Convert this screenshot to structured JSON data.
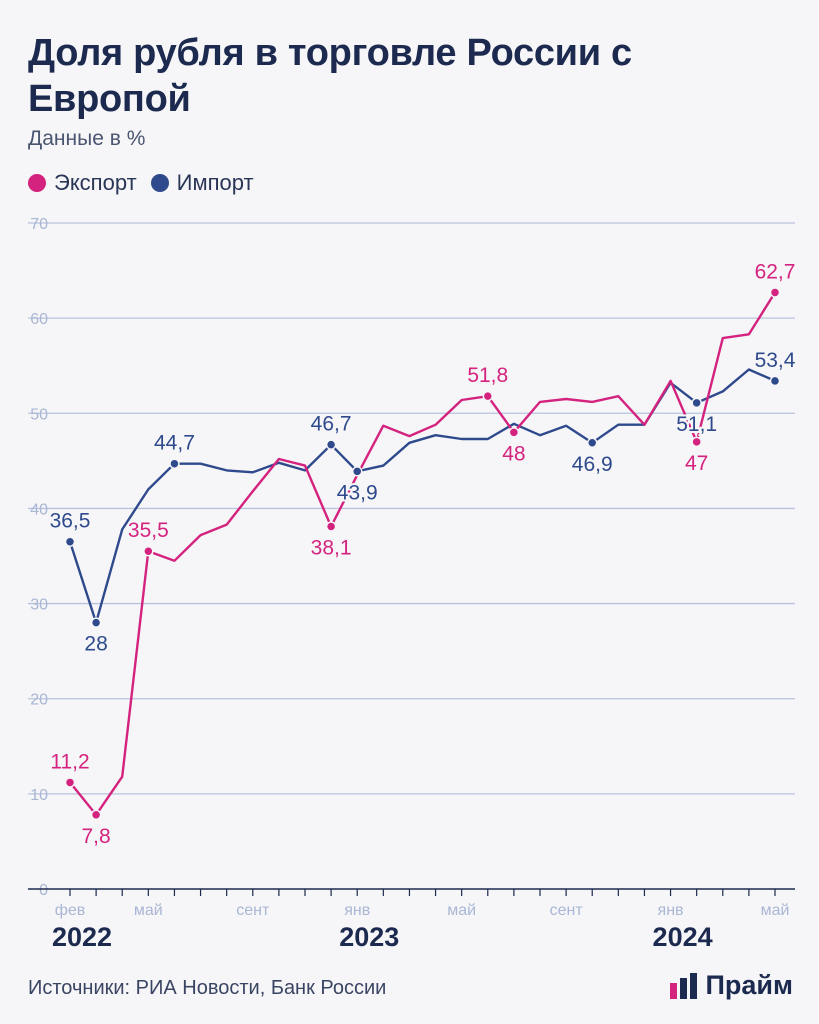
{
  "title": "Доля рубля в торговле России с Европой",
  "subtitle": "Данные в %",
  "legend": {
    "export_label": "Экспорт",
    "import_label": "Импорт"
  },
  "colors": {
    "export": "#d4237f",
    "import": "#2e4a8c",
    "grid": "#b9c3dd",
    "axis": "#1d2a4f",
    "tick": "#a9b6d4"
  },
  "source": "Источники: РИА Новости, Банк России",
  "brand": {
    "name": "Прайм"
  },
  "chart_data": {
    "type": "line",
    "title": "Доля рубля в торговле России с Европой",
    "ylabel": "Данные в %",
    "ylim": [
      0,
      70
    ],
    "yticks": [
      0,
      10,
      20,
      30,
      40,
      50,
      60,
      70
    ],
    "x": [
      "фев 2022",
      "мар 2022",
      "апр 2022",
      "май 2022",
      "июн 2022",
      "июл 2022",
      "авг 2022",
      "сен 2022",
      "окт 2022",
      "ноя 2022",
      "дек 2022",
      "янв 2023",
      "фев 2023",
      "мар 2023",
      "апр 2023",
      "май 2023",
      "июн 2023",
      "июл 2023",
      "авг 2023",
      "сен 2023",
      "окт 2023",
      "ноя 2023",
      "дек 2023",
      "янв 2024",
      "фев 2024",
      "мар 2024",
      "апр 2024",
      "май 2024"
    ],
    "xtick_labels": [
      {
        "index": 0,
        "label": "фев"
      },
      {
        "index": 3,
        "label": "май"
      },
      {
        "index": 7,
        "label": "сент"
      },
      {
        "index": 11,
        "label": "янв"
      },
      {
        "index": 15,
        "label": "май"
      },
      {
        "index": 19,
        "label": "сент"
      },
      {
        "index": 23,
        "label": "янв"
      },
      {
        "index": 27,
        "label": "май"
      }
    ],
    "year_labels": [
      {
        "index": 0,
        "label": "2022"
      },
      {
        "index": 11,
        "label": "2023"
      },
      {
        "index": 23,
        "label": "2024"
      }
    ],
    "series": [
      {
        "name": "Экспорт",
        "values": [
          11.2,
          7.8,
          11.8,
          35.5,
          34.5,
          37.2,
          38.3,
          41.8,
          45.2,
          44.5,
          38.1,
          43.5,
          48.7,
          47.6,
          48.8,
          51.4,
          51.8,
          48.0,
          51.2,
          51.5,
          51.2,
          51.8,
          48.8,
          53.4,
          47.0,
          57.9,
          58.3,
          62.7
        ],
        "labels": [
          {
            "index": 0,
            "text": "11,2",
            "pos": "above"
          },
          {
            "index": 1,
            "text": "7,8",
            "pos": "below"
          },
          {
            "index": 3,
            "text": "35,5",
            "pos": "above"
          },
          {
            "index": 10,
            "text": "38,1",
            "pos": "below"
          },
          {
            "index": 16,
            "text": "51,8",
            "pos": "above"
          },
          {
            "index": 17,
            "text": "48",
            "pos": "below"
          },
          {
            "index": 24,
            "text": "47",
            "pos": "below"
          },
          {
            "index": 27,
            "text": "62,7",
            "pos": "above"
          }
        ]
      },
      {
        "name": "Импорт",
        "values": [
          36.5,
          28.0,
          37.8,
          42.0,
          44.7,
          44.7,
          44.0,
          43.8,
          44.8,
          44.0,
          46.7,
          43.9,
          44.5,
          46.9,
          47.7,
          47.3,
          47.3,
          48.9,
          47.7,
          48.7,
          46.9,
          48.8,
          48.8,
          53.2,
          51.1,
          52.3,
          54.6,
          53.4
        ],
        "labels": [
          {
            "index": 0,
            "text": "36,5",
            "pos": "above"
          },
          {
            "index": 1,
            "text": "28",
            "pos": "below"
          },
          {
            "index": 4,
            "text": "44,7",
            "pos": "above"
          },
          {
            "index": 10,
            "text": "46,7",
            "pos": "above"
          },
          {
            "index": 11,
            "text": "43,9",
            "pos": "below"
          },
          {
            "index": 20,
            "text": "46,9",
            "pos": "below"
          },
          {
            "index": 24,
            "text": "51,1",
            "pos": "below"
          },
          {
            "index": 27,
            "text": "53,4",
            "pos": "above"
          }
        ]
      }
    ]
  }
}
